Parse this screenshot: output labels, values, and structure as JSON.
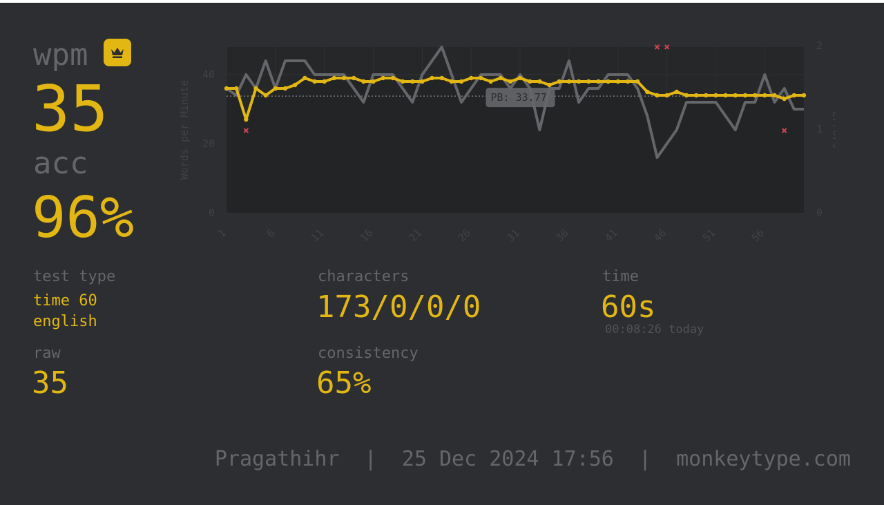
{
  "stats": {
    "wpm_label": "wpm",
    "wpm_value": "35",
    "acc_label": "acc",
    "acc_value": "96%",
    "test_type_label": "test type",
    "test_type_line1": "time 60",
    "test_type_line2": "english",
    "raw_label": "raw",
    "raw_value": "35",
    "characters_label": "characters",
    "characters_value": "173/0/0/0",
    "consistency_label": "consistency",
    "consistency_value": "65%",
    "time_label": "time",
    "time_value": "60s",
    "time_sub": "00:08:26 today"
  },
  "crown_icon": "crown-icon",
  "footer": {
    "username": "Pragathihr",
    "datetime": "25 Dec 2024 17:56",
    "site": "monkeytype.com",
    "separator": "|"
  },
  "colors": {
    "background": "#2c2e31",
    "accent": "#e2b714",
    "muted": "#646669",
    "error": "#ca4754"
  },
  "chart_data": {
    "type": "line",
    "ylabel": "Words per Minute",
    "y2label": "Errors",
    "ylim": [
      0,
      48
    ],
    "y2lim": [
      0,
      2
    ],
    "yticks": [
      0,
      20,
      40
    ],
    "y2ticks": [
      0,
      1,
      2
    ],
    "xlim": [
      1,
      60
    ],
    "xticks": [
      "1",
      "6",
      "11",
      "16",
      "21",
      "26",
      "31",
      "36",
      "41",
      "46",
      "51",
      "56"
    ],
    "pb_label": "PB: 33.77",
    "pb_value": 33.77,
    "series": [
      {
        "name": "raw",
        "color": "#646669",
        "x": [
          1,
          2,
          3,
          4,
          5,
          6,
          7,
          8,
          9,
          10,
          11,
          12,
          13,
          14,
          15,
          16,
          17,
          18,
          19,
          20,
          21,
          22,
          23,
          24,
          25,
          26,
          27,
          28,
          29,
          30,
          31,
          32,
          33,
          34,
          35,
          36,
          37,
          38,
          39,
          40,
          41,
          42,
          43,
          44,
          45,
          46,
          47,
          48,
          49,
          50,
          51,
          52,
          53,
          54,
          55,
          56,
          57,
          58,
          59,
          60
        ],
        "values": [
          36,
          34,
          40,
          36,
          44,
          36,
          44,
          44,
          44,
          40,
          40,
          40,
          40,
          36,
          32,
          40,
          40,
          40,
          36,
          32,
          40,
          44,
          48,
          40,
          32,
          36,
          40,
          40,
          40,
          36,
          40,
          36,
          24,
          36,
          36,
          44,
          32,
          36,
          36,
          40,
          40,
          40,
          36,
          28,
          16,
          20,
          24,
          32,
          32,
          32,
          32,
          28,
          24,
          32,
          32,
          40,
          32,
          36,
          30,
          30
        ]
      },
      {
        "name": "wpm",
        "color": "#e2b714",
        "x": [
          1,
          2,
          3,
          4,
          5,
          6,
          7,
          8,
          9,
          10,
          11,
          12,
          13,
          14,
          15,
          16,
          17,
          18,
          19,
          20,
          21,
          22,
          23,
          24,
          25,
          26,
          27,
          28,
          29,
          30,
          31,
          32,
          33,
          34,
          35,
          36,
          37,
          38,
          39,
          40,
          41,
          42,
          43,
          44,
          45,
          46,
          47,
          48,
          49,
          50,
          51,
          52,
          53,
          54,
          55,
          56,
          57,
          58,
          59,
          60
        ],
        "values": [
          36,
          36,
          27,
          36,
          34,
          36,
          36,
          37,
          39,
          38,
          38,
          39,
          39,
          39,
          38,
          38,
          39,
          39,
          38,
          38,
          38,
          39,
          39,
          38,
          38,
          39,
          39,
          38,
          39,
          38,
          39,
          38,
          38,
          37,
          38,
          38,
          38,
          38,
          38,
          38,
          38,
          38,
          38,
          35,
          34,
          34,
          35,
          34,
          34,
          34,
          34,
          34,
          34,
          34,
          34,
          34,
          34,
          33,
          34,
          34
        ]
      }
    ],
    "errors": [
      {
        "x": 3,
        "count": 1
      },
      {
        "x": 45,
        "count": 2
      },
      {
        "x": 46,
        "count": 2
      },
      {
        "x": 58,
        "count": 1
      }
    ]
  }
}
